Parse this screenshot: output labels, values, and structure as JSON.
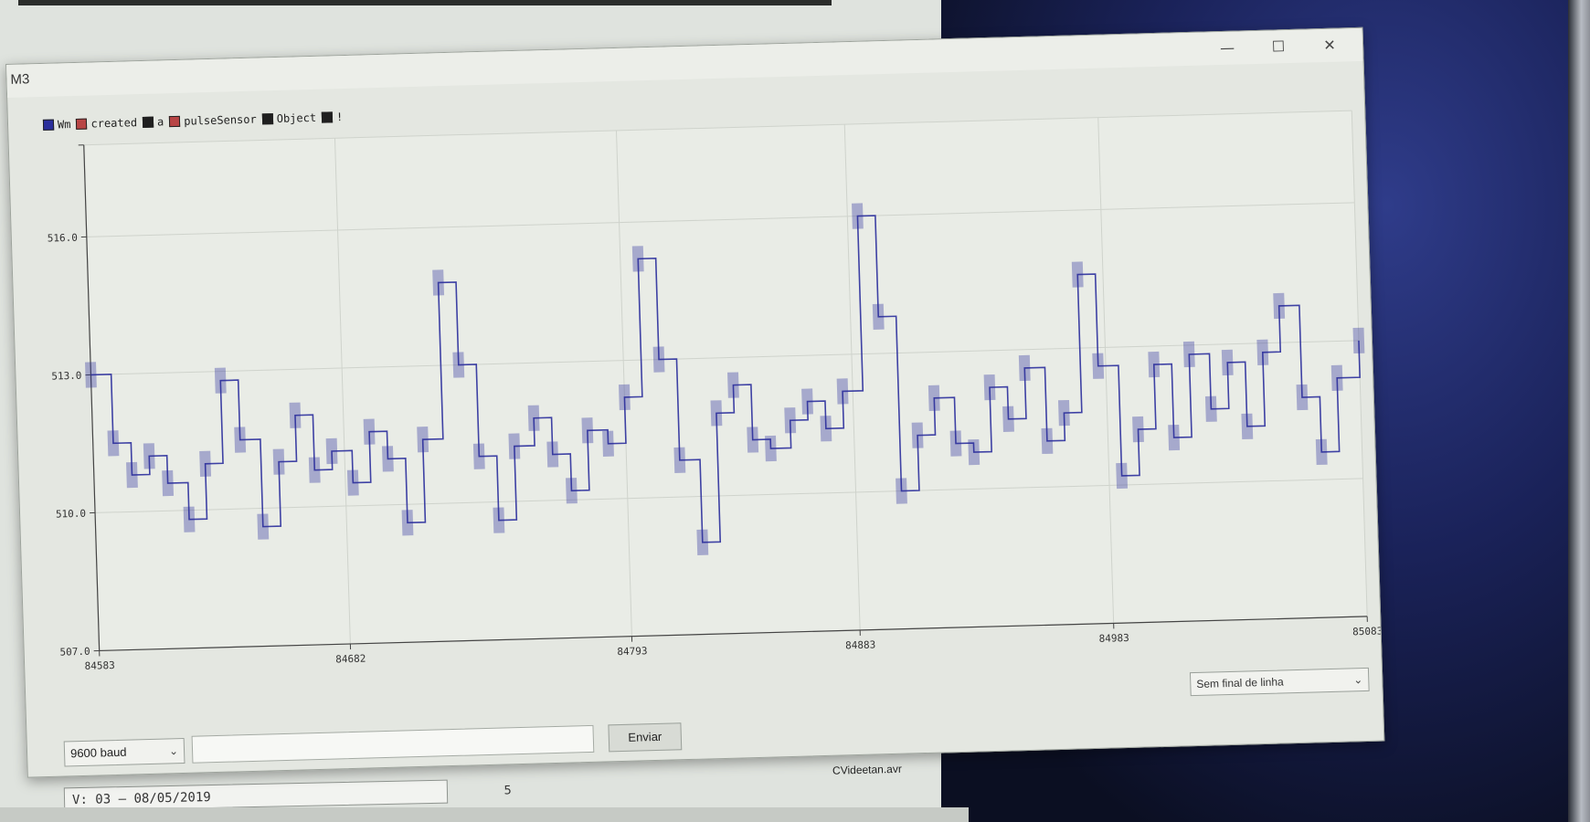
{
  "window": {
    "title": "M3",
    "controls": {
      "minimize": "—",
      "maximize": "☐",
      "close": "✕"
    }
  },
  "legend": {
    "items": [
      {
        "label": "Wm",
        "color": "#2b2f9c"
      },
      {
        "label": "created",
        "color": "#b84545"
      },
      {
        "label": "a",
        "color": "#1f1f1f"
      },
      {
        "label": "pulseSensor",
        "color": "#b84545"
      },
      {
        "label": "Object",
        "color": "#1f1f1f"
      },
      {
        "label": "!",
        "color": "#1f1f1f"
      }
    ]
  },
  "chart_data": {
    "type": "line",
    "xlim": [
      84583,
      85083
    ],
    "ylim": [
      507.0,
      518.0
    ],
    "x_ticks": [
      "84583",
      "84682",
      "84793",
      "84883",
      "84983",
      "85083"
    ],
    "y_ticks": [
      "507.0",
      "510.0",
      "513.0",
      "516.0",
      "518.0"
    ],
    "ytick_labels_visible": [
      "507.0",
      "510.0",
      "513.0",
      "516.0",
      ""
    ],
    "grid": true,
    "series": [
      {
        "name": "Wm",
        "color": "#2b2f9c",
        "x": [
          84583,
          84591,
          84598,
          84605,
          84612,
          84620,
          84627,
          84634,
          84641,
          84649,
          84656,
          84663,
          84670,
          84677,
          84685,
          84692,
          84699,
          84706,
          84713,
          84721,
          84728,
          84735,
          84742,
          84749,
          84757,
          84764,
          84771,
          84778,
          84786,
          84793,
          84800,
          84807,
          84814,
          84822,
          84829,
          84836,
          84843,
          84850,
          84858,
          84865,
          84872,
          84879,
          84887,
          84894,
          84901,
          84908,
          84915,
          84923,
          84930,
          84937,
          84944,
          84951,
          84959,
          84966,
          84973,
          84980,
          84988,
          84995,
          85002,
          85009,
          85016,
          85024,
          85031,
          85038,
          85045,
          85052,
          85060,
          85067,
          85074,
          85083
        ],
        "values": [
          513.0,
          511.5,
          510.8,
          511.2,
          510.6,
          509.8,
          511.0,
          512.8,
          511.5,
          509.6,
          511.0,
          512.0,
          510.8,
          511.2,
          510.5,
          511.6,
          511.0,
          509.6,
          511.4,
          514.8,
          513.0,
          511.0,
          509.6,
          511.2,
          511.8,
          511.0,
          510.2,
          511.5,
          511.2,
          512.2,
          515.2,
          513.0,
          510.8,
          509.0,
          511.8,
          512.4,
          511.2,
          511.0,
          511.6,
          512.0,
          511.4,
          512.2,
          516.0,
          513.8,
          510.0,
          511.2,
          512.0,
          511.0,
          510.8,
          512.2,
          511.5,
          512.6,
          511.0,
          511.6,
          514.6,
          512.6,
          510.2,
          511.2,
          512.6,
          511.0,
          512.8,
          511.6,
          512.6,
          511.2,
          512.8,
          513.8,
          511.8,
          510.6,
          512.2,
          513.0
        ]
      }
    ]
  },
  "bottom": {
    "line_ending": "Sem final de linha",
    "baud": "9600 baud",
    "send_input_value": "",
    "send_button": "Enviar",
    "status_small": "5",
    "status_right": "CVideetan.avr"
  },
  "background_window": {
    "version_field": "V: 03 — 08/05/2019"
  }
}
